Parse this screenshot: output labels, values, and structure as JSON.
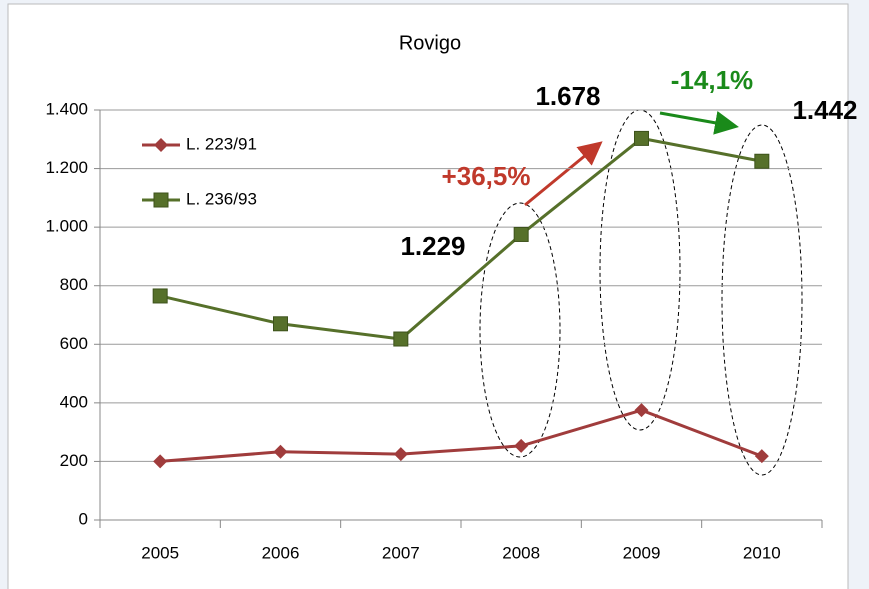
{
  "chart_data": {
    "type": "line",
    "title": "Rovigo",
    "categories": [
      "2005",
      "2006",
      "2007",
      "2008",
      "2009",
      "2010"
    ],
    "series": [
      {
        "name": "L. 223/91",
        "color": "#a03c3c",
        "marker": "diamond",
        "values": [
          200,
          233,
          225,
          253,
          375,
          218
        ]
      },
      {
        "name": "L. 236/93",
        "color": "#56702a",
        "marker": "square",
        "values": [
          765,
          670,
          618,
          975,
          1303,
          1225
        ]
      }
    ],
    "ylim": [
      0,
      1400
    ],
    "yticks": [
      0,
      200,
      400,
      600,
      800,
      {
        "value": 1000,
        "label": "1.000"
      },
      {
        "value": 1200,
        "label": "1.200"
      },
      {
        "value": 1400,
        "label": "1.400"
      }
    ],
    "grid": true,
    "legend": "upper left",
    "annotations": [
      {
        "text": "1.229",
        "color": "#000000"
      },
      {
        "text": "1.678",
        "color": "#000000"
      },
      {
        "text": "1.442",
        "color": "#000000"
      },
      {
        "text": "+36,5%",
        "color": "#c0392b"
      },
      {
        "text": "-14,1%",
        "color": "#1a8a1a"
      }
    ]
  }
}
